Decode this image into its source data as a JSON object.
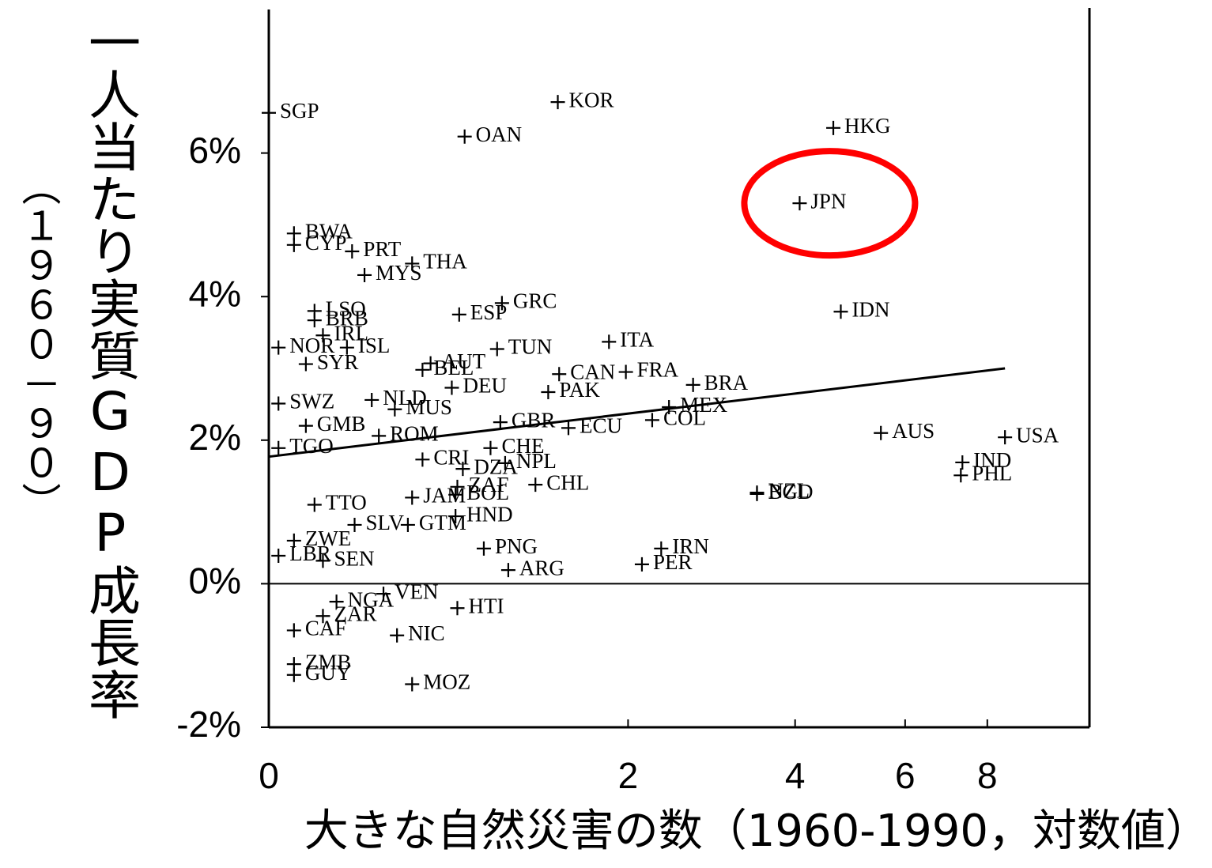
{
  "chart_data": {
    "type": "scatter",
    "ylabel": "一人当たり実質GDP成長率",
    "ylabel_period": "（１９６０－９０）",
    "xlabel": "大きな自然災害の数（1960-1990，対数値）",
    "xscale": "log1p",
    "xlim": [
      0,
      11.3
    ],
    "xticks": [
      0,
      2,
      4,
      6,
      8
    ],
    "ylim": [
      -2,
      8
    ],
    "yticks": [
      {
        "value": -2,
        "label": "-2%"
      },
      {
        "value": 0,
        "label": "0%"
      },
      {
        "value": 2,
        "label": "2%"
      },
      {
        "value": 4,
        "label": "4%"
      },
      {
        "value": 6,
        "label": "6%"
      }
    ],
    "color": "#000000",
    "labels": [
      "SGP",
      "OAN",
      "KOR",
      "HKG",
      "JPN",
      "BWA",
      "CYP",
      "PRT",
      "THA",
      "MYS",
      "GRC",
      "ESP",
      "IDN",
      "LSO",
      "BRB",
      "IRL",
      "ISL",
      "NOR",
      "SYR",
      "TUN",
      "ITA",
      "BEL",
      "AUT",
      "CAN",
      "FRA",
      "DEU",
      "PAK",
      "BRA",
      "MEX",
      "COL",
      "SWZ",
      "NLD",
      "MUS",
      "GMB",
      "GBR",
      "ECU",
      "ROM",
      "TGO",
      "AUS",
      "USA",
      "IND",
      "PHL",
      "CHE",
      "CRI",
      "DZA",
      "NPL",
      "ZAF",
      "CHL",
      "NZL",
      "BGD",
      "JAM",
      "BOL",
      "TTO",
      "HND",
      "SLV",
      "GTM",
      "PNG",
      "IRN",
      "PER",
      "ARG",
      "ZWE",
      "LBR",
      "SEN",
      "VEN",
      "NGA",
      "HTI",
      "ZAR",
      "CAF",
      "NIC",
      "ZMB",
      "GUY",
      "MOZ"
    ],
    "x": [
      0,
      0.82,
      1.42,
      4.62,
      4.07,
      0.08,
      0.08,
      0.29,
      0.55,
      0.34,
      1.04,
      0.79,
      4.75,
      0.15,
      0.15,
      0.18,
      0.27,
      0.03,
      0.12,
      1.01,
      1.83,
      0.6,
      0.64,
      1.43,
      1.98,
      0.75,
      1.35,
      2.66,
      2.4,
      2.23,
      0.03,
      0.37,
      0.47,
      0.12,
      1.03,
      1.5,
      0.4,
      0.03,
      5.5,
      8.5,
      7.34,
      7.3,
      0.97,
      0.6,
      0.81,
      1.06,
      0.78,
      1.26,
      3.45,
      3.45,
      0.55,
      0.77,
      0.15,
      0.77,
      0.3,
      0.53,
      0.93,
      2.32,
      2.13,
      1.08,
      0.08,
      0.03,
      0.18,
      0.42,
      0.23,
      0.78,
      0.18,
      0.08,
      0.48,
      0.08,
      0.08,
      0.55
    ],
    "y": [
      6.56,
      6.23,
      6.71,
      6.35,
      5.3,
      4.88,
      4.72,
      4.63,
      4.46,
      4.3,
      3.91,
      3.75,
      3.79,
      3.8,
      3.67,
      3.46,
      3.29,
      3.29,
      3.06,
      3.27,
      3.37,
      2.98,
      3.07,
      2.92,
      2.95,
      2.73,
      2.67,
      2.77,
      2.46,
      2.28,
      2.51,
      2.56,
      2.43,
      2.2,
      2.25,
      2.17,
      2.06,
      1.89,
      2.1,
      2.04,
      1.69,
      1.51,
      1.89,
      1.73,
      1.6,
      1.68,
      1.35,
      1.38,
      1.27,
      1.25,
      1.2,
      1.24,
      1.1,
      0.94,
      0.82,
      0.82,
      0.49,
      0.49,
      0.27,
      0.19,
      0.6,
      0.39,
      0.32,
      -0.14,
      -0.25,
      -0.34,
      -0.45,
      -0.65,
      -0.72,
      -1.12,
      -1.27,
      -1.4
    ],
    "trend": {
      "x": [
        0,
        8.5
      ],
      "y": [
        1.77,
        3.0
      ]
    },
    "highlight": "JPN",
    "highlight_color": "#ff0000"
  }
}
